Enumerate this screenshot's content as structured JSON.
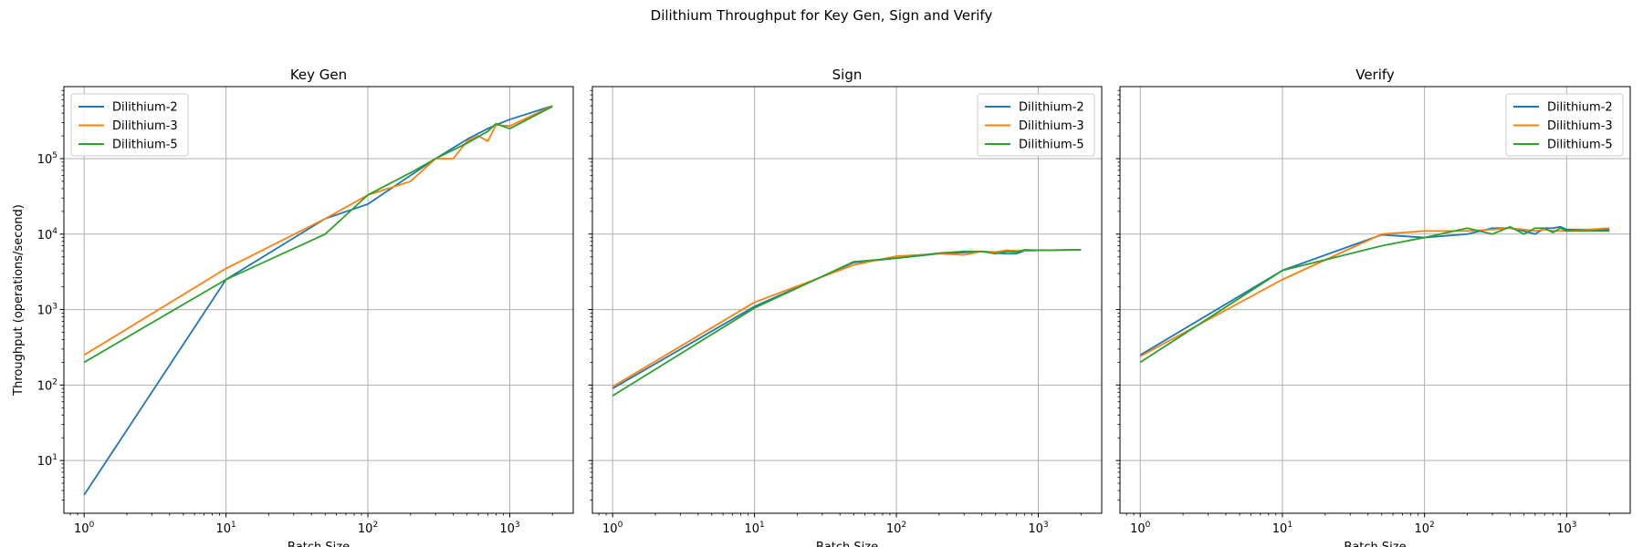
{
  "figure": {
    "title": "Dilithium Throughput for Key Gen, Sign and Verify"
  },
  "colors": {
    "Dilithium-2": "#1f77b4",
    "Dilithium-3": "#ff7f0e",
    "Dilithium-5": "#2ca02c",
    "grid": "#b0b0b0"
  },
  "chart_data": [
    {
      "type": "line",
      "title": "Key Gen",
      "xlabel": "Batch Size",
      "ylabel": "Throughput (operations/second)",
      "xscale": "log",
      "yscale": "log",
      "xlim": [
        0.72,
        2800
      ],
      "ylim": [
        2,
        900000
      ],
      "x_ticks": [
        1,
        10,
        100,
        1000
      ],
      "y_ticks": [
        10,
        100,
        1000,
        10000,
        100000
      ],
      "grid": true,
      "legend": "top-left",
      "series": [
        {
          "name": "Dilithium-2",
          "x": [
            1,
            10,
            50,
            100,
            200,
            300,
            500,
            700,
            800,
            1000,
            2000
          ],
          "y": [
            3.5,
            2500,
            16000,
            25000,
            60000,
            100000,
            180000,
            250000,
            280000,
            330000,
            500000
          ]
        },
        {
          "name": "Dilithium-3",
          "x": [
            1,
            10,
            50,
            100,
            200,
            300,
            400,
            500,
            600,
            700,
            800,
            1000,
            2000
          ],
          "y": [
            250,
            3500,
            16000,
            33000,
            50000,
            100000,
            100000,
            170000,
            200000,
            170000,
            280000,
            270000,
            500000
          ]
        },
        {
          "name": "Dilithium-5",
          "x": [
            1,
            10,
            50,
            100,
            200,
            300,
            500,
            700,
            800,
            1000,
            2000
          ],
          "y": [
            200,
            2500,
            10000,
            33000,
            65000,
            100000,
            160000,
            230000,
            290000,
            250000,
            490000
          ]
        }
      ]
    },
    {
      "type": "line",
      "title": "Sign",
      "xlabel": "Batch Size",
      "xscale": "log",
      "yscale": "log",
      "xlim": [
        0.72,
        2800
      ],
      "ylim": [
        2,
        900000
      ],
      "x_ticks": [
        1,
        10,
        100,
        1000
      ],
      "grid": true,
      "legend": "top-right",
      "series": [
        {
          "name": "Dilithium-2",
          "x": [
            1,
            10,
            50,
            100,
            200,
            300,
            400,
            500,
            600,
            700,
            800,
            1000,
            2000
          ],
          "y": [
            90,
            1100,
            4200,
            4800,
            5500,
            5700,
            5900,
            5600,
            5500,
            5500,
            6000,
            6100,
            6200
          ]
        },
        {
          "name": "Dilithium-3",
          "x": [
            1,
            10,
            50,
            100,
            200,
            300,
            400,
            500,
            600,
            700,
            800,
            1000,
            2000
          ],
          "y": [
            95,
            1250,
            3900,
            5100,
            5500,
            5300,
            5900,
            5800,
            6100,
            6000,
            6000,
            6100,
            6200
          ]
        },
        {
          "name": "Dilithium-5",
          "x": [
            1,
            10,
            50,
            100,
            200,
            300,
            400,
            500,
            600,
            700,
            800,
            1000,
            2000
          ],
          "y": [
            72,
            1050,
            4300,
            4800,
            5600,
            5900,
            5900,
            5500,
            5900,
            5800,
            6200,
            6100,
            6200
          ]
        }
      ]
    },
    {
      "type": "line",
      "title": "Verify",
      "xlabel": "Batch Size",
      "xscale": "log",
      "yscale": "log",
      "xlim": [
        0.72,
        2800
      ],
      "ylim": [
        2,
        900000
      ],
      "x_ticks": [
        1,
        10,
        100,
        1000
      ],
      "grid": true,
      "legend": "top-right",
      "series": [
        {
          "name": "Dilithium-2",
          "x": [
            1,
            10,
            50,
            100,
            200,
            300,
            400,
            500,
            600,
            700,
            800,
            900,
            1000,
            2000
          ],
          "y": [
            250,
            3300,
            9800,
            9000,
            10000,
            12000,
            12000,
            11000,
            10000,
            12000,
            12000,
            12500,
            11500,
            11500
          ]
        },
        {
          "name": "Dilithium-3",
          "x": [
            1,
            10,
            50,
            100,
            200,
            300,
            400,
            500,
            600,
            700,
            800,
            900,
            1000,
            2000
          ],
          "y": [
            240,
            2500,
            10000,
            11000,
            11000,
            11500,
            12000,
            11500,
            11000,
            11500,
            11000,
            11000,
            11000,
            12000
          ]
        },
        {
          "name": "Dilithium-5",
          "x": [
            1,
            10,
            50,
            100,
            200,
            300,
            400,
            500,
            600,
            700,
            800,
            900,
            1000,
            2000
          ],
          "y": [
            200,
            3300,
            7000,
            9000,
            12000,
            10000,
            12500,
            10000,
            12000,
            12000,
            10500,
            12000,
            11000,
            11000
          ]
        }
      ]
    }
  ]
}
